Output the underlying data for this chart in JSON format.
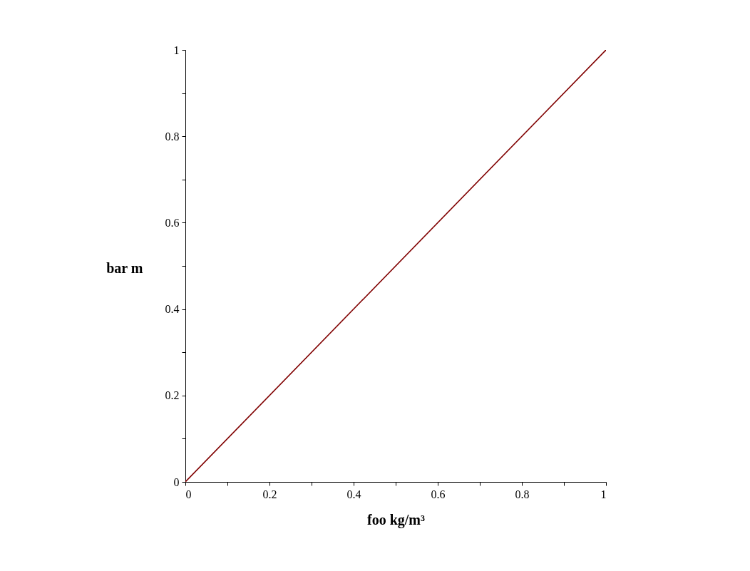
{
  "chart_data": {
    "type": "line",
    "xlabel": "foo kg/m³",
    "ylabel": "bar m",
    "x": [
      0,
      1
    ],
    "series": [
      {
        "color": "#800000",
        "values": [
          0,
          1
        ]
      }
    ],
    "xlim": [
      0,
      1
    ],
    "ylim": [
      0,
      1
    ],
    "xticks": [
      0,
      {
        "value": 0.1,
        "label": null
      },
      0.2,
      {
        "value": 0.3,
        "label": null
      },
      0.4,
      {
        "value": 0.5,
        "label": null
      },
      0.6,
      {
        "value": 0.7,
        "label": null
      },
      0.8,
      {
        "value": 0.9,
        "label": null
      },
      1
    ],
    "yticks": [
      0,
      {
        "value": 0.1,
        "label": null
      },
      0.2,
      {
        "value": 0.3,
        "label": null
      },
      0.4,
      {
        "value": 0.5,
        "label": null
      },
      0.6,
      {
        "value": 0.7,
        "label": null
      },
      0.8,
      {
        "value": 0.9,
        "label": null
      },
      1
    ],
    "grid": false,
    "marker": "none",
    "line_style": "solid"
  }
}
